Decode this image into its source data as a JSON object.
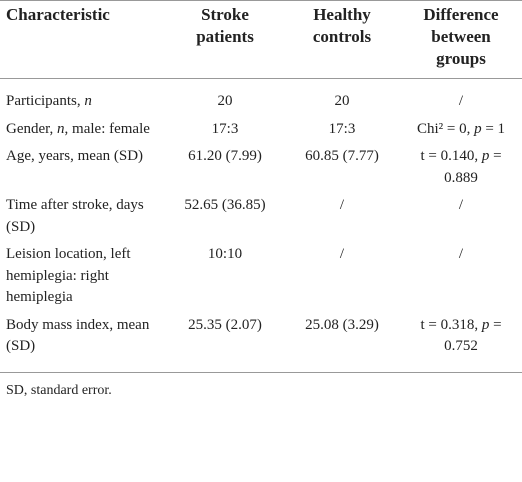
{
  "table": {
    "header": [
      "Characteristic",
      "Stroke patients",
      "Healthy controls",
      "Difference between groups"
    ],
    "rows": [
      [
        [
          {
            "text": "Participants, "
          },
          {
            "text": "n",
            "style": "italic"
          }
        ],
        "20",
        "20",
        "/"
      ],
      [
        [
          {
            "text": "Gender, "
          },
          {
            "text": "n",
            "style": "italic"
          },
          {
            "text": ", male: female"
          }
        ],
        "17:3",
        "17:3",
        [
          {
            "text": "Chi² = 0, "
          },
          {
            "text": "p",
            "style": "italic"
          },
          {
            "text": " = 1"
          }
        ]
      ],
      [
        "Age, years, mean (SD)",
        "61.20 (7.99)",
        "60.85 (7.77)",
        [
          {
            "text": "t = 0.140, "
          },
          {
            "text": "p",
            "style": "italic"
          },
          {
            "text": " = 0.889"
          }
        ]
      ],
      [
        "Time after stroke, days (SD)",
        "52.65 (36.85)",
        "/",
        "/"
      ],
      [
        "Leision location, left hemiplegia: right hemiplegia",
        "10:10",
        "/",
        "/"
      ],
      [
        "Body mass index, mean (SD)",
        "25.35 (2.07)",
        "25.08 (3.29)",
        [
          {
            "text": "t = 0.318, "
          },
          {
            "text": "p",
            "style": "italic"
          },
          {
            "text": " = 0.752"
          }
        ]
      ]
    ],
    "footnote": "SD, standard error."
  }
}
